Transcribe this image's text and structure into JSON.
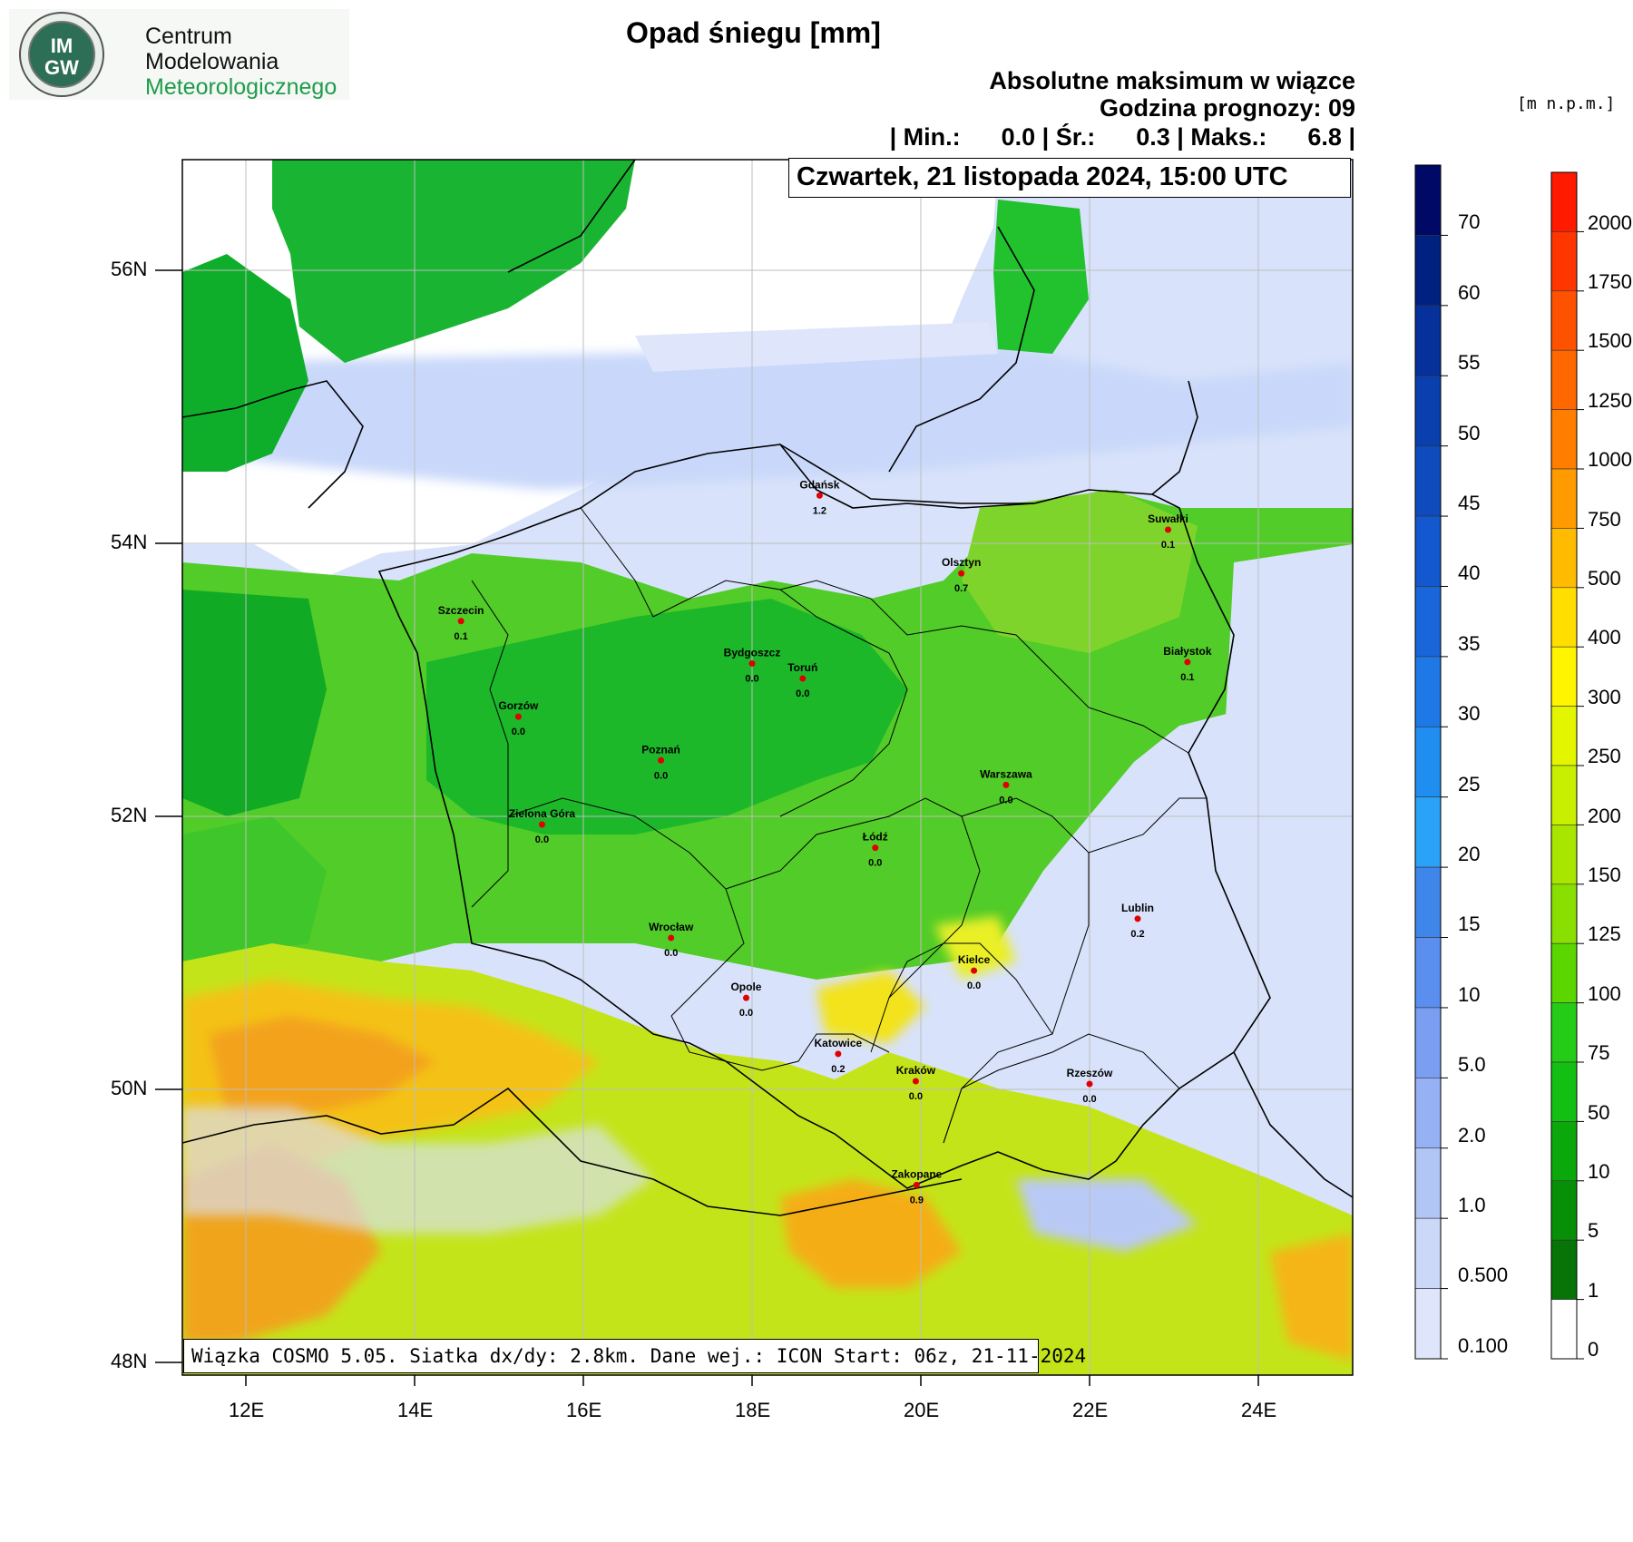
{
  "logo": {
    "badge": "IMGW",
    "lines": [
      "Centrum",
      "Modelowania",
      "Meteorologicznego"
    ]
  },
  "title": "Opad śniegu [mm]",
  "subtitle": "Absolutne maksimum w wiązce",
  "forecast_hour": "Godzina prognozy: 09",
  "stats_line": "| Min.:      0.0 | Śr.:      0.3 | Maks.:      6.8 |",
  "date_label": "Czwartek, 21 listopada 2024, 15:00 UTC",
  "footer": "Wiązka COSMO 5.05. Siatka dx/dy: 2.8km. Dane wej.: ICON Start: 06z, 21-11-2024",
  "axes": {
    "lon_ticks": [
      "12E",
      "14E",
      "16E",
      "18E",
      "20E",
      "22E",
      "24E"
    ],
    "lat_ticks": [
      "56N",
      "54N",
      "52N",
      "50N",
      "48N"
    ]
  },
  "cities": [
    {
      "name": "Gdańsk",
      "value": "1.2",
      "lon": 18.8,
      "lat": 54.35
    },
    {
      "name": "Suwałki",
      "value": "0.1",
      "lon": 22.93,
      "lat": 54.1
    },
    {
      "name": "Olsztyn",
      "value": "0.7",
      "lon": 20.48,
      "lat": 53.78
    },
    {
      "name": "Szczecin",
      "value": "0.1",
      "lon": 14.55,
      "lat": 53.43
    },
    {
      "name": "Białystok",
      "value": "0.1",
      "lon": 23.16,
      "lat": 53.13
    },
    {
      "name": "Bydgoszcz",
      "value": "0.0",
      "lon": 18.0,
      "lat": 53.12
    },
    {
      "name": "Toruń",
      "value": "0.0",
      "lon": 18.6,
      "lat": 53.01
    },
    {
      "name": "Gorzów",
      "value": "0.0",
      "lon": 15.23,
      "lat": 52.73
    },
    {
      "name": "Poznań",
      "value": "0.0",
      "lon": 16.92,
      "lat": 52.41
    },
    {
      "name": "Warszawa",
      "value": "0.0",
      "lon": 21.01,
      "lat": 52.23
    },
    {
      "name": "Zielona Góra",
      "value": "0.0",
      "lon": 15.51,
      "lat": 51.94
    },
    {
      "name": "Łódź",
      "value": "0.0",
      "lon": 19.46,
      "lat": 51.77
    },
    {
      "name": "Lublin",
      "value": "0.2",
      "lon": 22.57,
      "lat": 51.25
    },
    {
      "name": "Wrocław",
      "value": "0.0",
      "lon": 17.04,
      "lat": 51.11
    },
    {
      "name": "Kielce",
      "value": "0.0",
      "lon": 20.63,
      "lat": 50.87
    },
    {
      "name": "Opole",
      "value": "0.0",
      "lon": 17.93,
      "lat": 50.67
    },
    {
      "name": "Katowice",
      "value": "0.2",
      "lon": 19.02,
      "lat": 50.26
    },
    {
      "name": "Kraków",
      "value": "0.0",
      "lon": 19.94,
      "lat": 50.06
    },
    {
      "name": "Rzeszów",
      "value": "0.0",
      "lon": 22.0,
      "lat": 50.04
    },
    {
      "name": "Zakopane",
      "value": "0.9",
      "lon": 19.95,
      "lat": 49.3
    }
  ],
  "snow_legend": {
    "labels": [
      "70",
      "60",
      "55",
      "50",
      "45",
      "40",
      "35",
      "30",
      "25",
      "20",
      "15",
      "10",
      "5.0",
      "2.0",
      "1.0",
      "0.500",
      "0.100"
    ],
    "colors": [
      "#000a66",
      "#00217f",
      "#06309a",
      "#0a3fae",
      "#0e4cbe",
      "#1358ce",
      "#1866da",
      "#1e78e6",
      "#1f8ef0",
      "#2aa2f8",
      "#3f86ea",
      "#5a8ff0",
      "#7a9ff2",
      "#96b2f4",
      "#b2c6f6",
      "#ccd8f8",
      "#dfe6fb"
    ]
  },
  "height_legend": {
    "unit": "[m n.p.m.]",
    "labels": [
      "2000",
      "1750",
      "1500",
      "1250",
      "1000",
      "750",
      "500",
      "400",
      "300",
      "250",
      "200",
      "150",
      "125",
      "100",
      "75",
      "50",
      "10",
      "5",
      "1",
      "0"
    ],
    "colors": [
      "#ff1a00",
      "#ff3600",
      "#ff5200",
      "#ff6800",
      "#ff7e00",
      "#ff9a00",
      "#ffbb00",
      "#ffde00",
      "#fff500",
      "#e4f500",
      "#c8ee00",
      "#a8e600",
      "#88df00",
      "#5cd600",
      "#24cc18",
      "#14bf14",
      "#0aa80a",
      "#088f08",
      "#067406",
      "#ffffff"
    ]
  }
}
